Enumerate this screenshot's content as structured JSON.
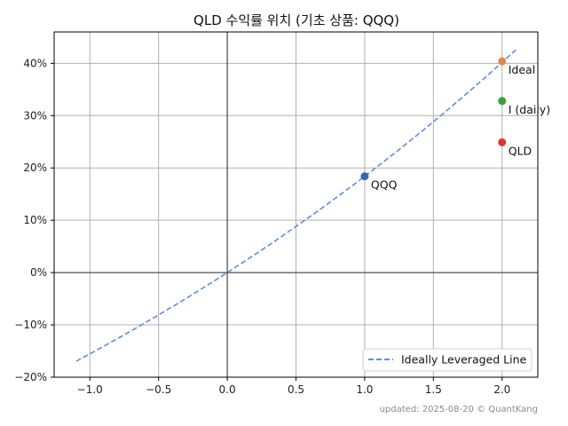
{
  "chart_data": {
    "type": "scatter",
    "title": "QLD 수익률 위치 (기초 상품: QQQ)",
    "xlabel": "",
    "ylabel": "",
    "xlim": [
      -1.26,
      2.26
    ],
    "ylim": [
      -0.2,
      0.46
    ],
    "grid": true,
    "x_ticks": [
      {
        "value": -1.0,
        "label": "−1.0"
      },
      {
        "value": -0.5,
        "label": "−0.5"
      },
      {
        "value": 0.0,
        "label": "0.0"
      },
      {
        "value": 0.5,
        "label": "0.5"
      },
      {
        "value": 1.0,
        "label": "1.0"
      },
      {
        "value": 1.5,
        "label": "1.5"
      },
      {
        "value": 2.0,
        "label": "2.0"
      }
    ],
    "y_ticks": [
      {
        "value": -0.2,
        "label": "−20%"
      },
      {
        "value": -0.1,
        "label": "−10%"
      },
      {
        "value": 0.0,
        "label": "0%"
      },
      {
        "value": 0.1,
        "label": "10%"
      },
      {
        "value": 0.2,
        "label": "20%"
      },
      {
        "value": 0.3,
        "label": "30%"
      },
      {
        "value": 0.4,
        "label": "40%"
      }
    ],
    "line": {
      "name": "Ideally Leveraged Line",
      "color": "#5b8fe0",
      "style": "dashed",
      "base_return": 0.184,
      "x_range": [
        -1.1,
        2.1
      ]
    },
    "points": [
      {
        "label": "Ideal",
        "x": 2.0,
        "y": 0.404,
        "color": "#e08b4a"
      },
      {
        "label": "I (daily)",
        "x": 2.0,
        "y": 0.328,
        "color": "#3aa23a"
      },
      {
        "label": "QLD",
        "x": 2.0,
        "y": 0.249,
        "color": "#d63a2f"
      },
      {
        "label": "QQQ",
        "x": 1.0,
        "y": 0.184,
        "color": "#2e6db4"
      }
    ],
    "legend_position": "lower-right",
    "footer": "updated: 2025-08-20 © QuantKang"
  }
}
